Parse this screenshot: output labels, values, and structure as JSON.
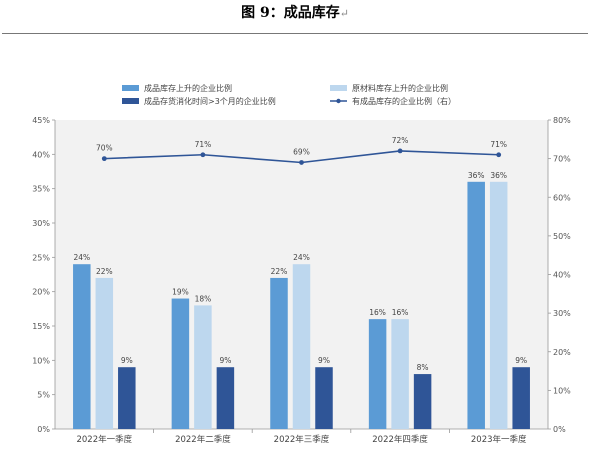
{
  "figure_caption": {
    "title": "图 9：成品库存",
    "mark": "↵"
  },
  "chart_data": {
    "type": "bar",
    "categories": [
      "2022年一季度",
      "2022年二季度",
      "2022年三季度",
      "2022年四季度",
      "2023年一季度"
    ],
    "series": [
      {
        "name": "成品库存上升的企业比例",
        "values": [
          24,
          19,
          22,
          16,
          36
        ],
        "color": "#5b9bd5",
        "axis": "left"
      },
      {
        "name": "原材料库存上升的企业比例",
        "values": [
          22,
          18,
          24,
          16,
          36
        ],
        "color": "#bdd7ee",
        "axis": "left"
      },
      {
        "name": "成品存货消化时间>3个月的企业比例",
        "values": [
          9,
          9,
          9,
          8,
          9
        ],
        "color": "#2f5597",
        "axis": "left"
      },
      {
        "name": "有成品库存的企业比例（右）",
        "type": "line",
        "values": [
          70,
          71,
          69,
          72,
          71
        ],
        "color": "#2f5597",
        "axis": "right"
      }
    ],
    "y_left": {
      "min": 0,
      "max": 45,
      "step": 5,
      "unit": "%"
    },
    "y_right": {
      "min": 0,
      "max": 80,
      "step": 10,
      "unit": "%"
    },
    "value_suffix": "%",
    "grid": false,
    "legend_position": "top",
    "plot_background": "#f2f2f2"
  }
}
